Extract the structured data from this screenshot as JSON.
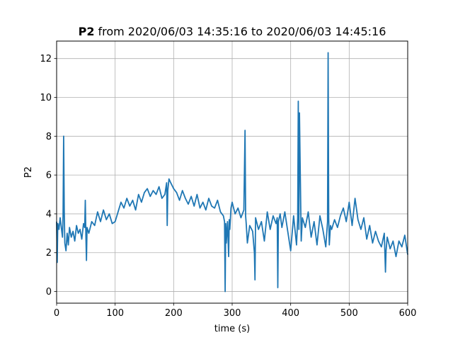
{
  "chart_data": {
    "type": "line",
    "title_bold": "P2",
    "title_rest": "from 2020/06/03 14:35:16 to 2020/06/03 14:45:16",
    "xlabel": "time (s)",
    "ylabel": "P2",
    "xlim": [
      0,
      600
    ],
    "ylim": [
      -0.6,
      12.9
    ],
    "xticks": [
      0,
      100,
      200,
      300,
      400,
      500,
      600
    ],
    "yticks": [
      0,
      2,
      4,
      6,
      8,
      10,
      12
    ],
    "grid": true,
    "legend": "none",
    "series": [
      {
        "color": "#1f77b4",
        "x": [
          0,
          1,
          2,
          4,
          6,
          8,
          10,
          11,
          12,
          13,
          14,
          16,
          18,
          20,
          22,
          25,
          28,
          31,
          34,
          37,
          40,
          43,
          46,
          48,
          49,
          50,
          51,
          52,
          55,
          60,
          65,
          70,
          75,
          80,
          85,
          90,
          95,
          100,
          105,
          110,
          115,
          120,
          125,
          130,
          135,
          140,
          145,
          150,
          155,
          160,
          165,
          170,
          175,
          180,
          185,
          188,
          189,
          190,
          192,
          195,
          200,
          205,
          210,
          215,
          220,
          225,
          230,
          235,
          240,
          245,
          250,
          255,
          260,
          265,
          270,
          275,
          280,
          285,
          287,
          288,
          289,
          290,
          292,
          294,
          295,
          296,
          298,
          300,
          305,
          310,
          315,
          320,
          322,
          323,
          324,
          326,
          330,
          335,
          338,
          339,
          340,
          345,
          350,
          355,
          360,
          365,
          370,
          375,
          377,
          378,
          379,
          382,
          385,
          390,
          395,
          400,
          405,
          410,
          412,
          413,
          414,
          415,
          418,
          420,
          425,
          430,
          435,
          440,
          445,
          450,
          455,
          460,
          463,
          464,
          465,
          466,
          468,
          470,
          475,
          480,
          485,
          490,
          495,
          500,
          505,
          510,
          515,
          520,
          525,
          530,
          535,
          540,
          545,
          550,
          555,
          560,
          562,
          563,
          565,
          570,
          575,
          580,
          585,
          590,
          595,
          600
        ],
        "y": [
          3.6,
          1.5,
          3.5,
          3.2,
          3.8,
          3.3,
          2.8,
          3.9,
          8.0,
          4.2,
          2.5,
          2.1,
          3.0,
          2.4,
          3.3,
          2.8,
          3.1,
          2.6,
          3.4,
          3.0,
          3.2,
          2.7,
          3.5,
          3.3,
          4.7,
          2.9,
          1.6,
          3.3,
          3.0,
          3.6,
          3.4,
          4.1,
          3.6,
          4.2,
          3.7,
          4.0,
          3.5,
          3.6,
          4.1,
          4.6,
          4.3,
          4.8,
          4.4,
          4.7,
          4.2,
          5.0,
          4.6,
          5.1,
          5.3,
          4.9,
          5.2,
          5.0,
          5.4,
          4.8,
          5.0,
          5.6,
          3.4,
          5.2,
          5.8,
          5.6,
          5.3,
          5.1,
          4.7,
          5.2,
          4.8,
          4.5,
          4.9,
          4.4,
          5.0,
          4.3,
          4.6,
          4.2,
          4.8,
          4.4,
          4.3,
          4.7,
          4.1,
          3.9,
          3.6,
          0.0,
          3.5,
          2.5,
          3.6,
          1.8,
          3.7,
          3.2,
          4.3,
          4.6,
          4.0,
          4.3,
          3.8,
          4.2,
          8.3,
          3.9,
          3.5,
          2.5,
          3.4,
          3.1,
          2.0,
          0.6,
          3.8,
          3.2,
          3.6,
          2.6,
          4.1,
          3.2,
          3.9,
          3.5,
          3.8,
          0.2,
          3.6,
          4.0,
          3.3,
          4.1,
          3.1,
          2.1,
          3.9,
          2.4,
          3.8,
          9.8,
          3.2,
          9.2,
          2.6,
          3.8,
          3.3,
          4.1,
          2.8,
          3.6,
          2.4,
          3.9,
          3.2,
          2.3,
          3.6,
          12.3,
          3.8,
          2.4,
          3.4,
          3.2,
          3.7,
          3.3,
          3.9,
          4.3,
          3.6,
          4.6,
          3.4,
          4.8,
          3.7,
          3.2,
          3.8,
          2.7,
          3.4,
          2.5,
          3.1,
          2.6,
          2.3,
          3.0,
          1.0,
          2.1,
          2.8,
          2.2,
          2.6,
          1.8,
          2.6,
          2.3,
          2.9,
          1.9
        ]
      }
    ]
  }
}
